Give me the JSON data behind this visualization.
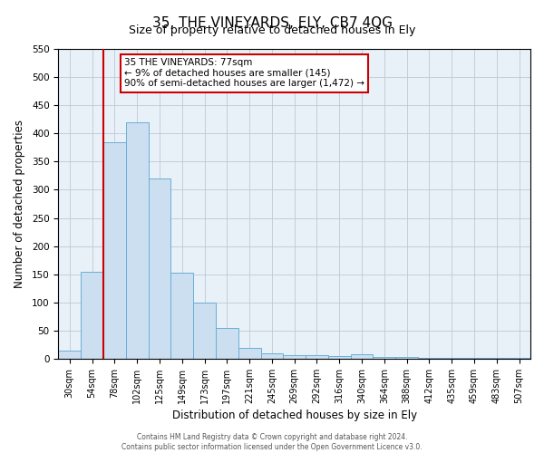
{
  "title": "35, THE VINEYARDS, ELY, CB7 4QG",
  "subtitle": "Size of property relative to detached houses in Ely",
  "xlabel": "Distribution of detached houses by size in Ely",
  "ylabel": "Number of detached properties",
  "bar_labels": [
    "30sqm",
    "54sqm",
    "78sqm",
    "102sqm",
    "125sqm",
    "149sqm",
    "173sqm",
    "197sqm",
    "221sqm",
    "245sqm",
    "269sqm",
    "292sqm",
    "316sqm",
    "340sqm",
    "364sqm",
    "388sqm",
    "412sqm",
    "435sqm",
    "459sqm",
    "483sqm",
    "507sqm"
  ],
  "bar_heights": [
    15,
    155,
    385,
    420,
    320,
    152,
    100,
    55,
    20,
    10,
    7,
    7,
    5,
    8,
    3,
    3,
    2,
    2,
    2,
    2,
    2
  ],
  "bar_color": "#ccdff0",
  "bar_edge_color": "#6aaed6",
  "vline_color": "#cc0000",
  "vline_pos": 2,
  "ylim": [
    0,
    550
  ],
  "yticks": [
    0,
    50,
    100,
    150,
    200,
    250,
    300,
    350,
    400,
    450,
    500,
    550
  ],
  "annotation_title": "35 THE VINEYARDS: 77sqm",
  "annotation_line1": "← 9% of detached houses are smaller (145)",
  "annotation_line2": "90% of semi-detached houses are larger (1,472) →",
  "annotation_box_color": "#ffffff",
  "annotation_box_edge": "#cc0000",
  "footer_line1": "Contains HM Land Registry data © Crown copyright and database right 2024.",
  "footer_line2": "Contains public sector information licensed under the Open Government Licence v3.0.",
  "bg_color": "#ffffff",
  "plot_bg_color": "#e8f0f8",
  "grid_color": "#c0c8d8",
  "title_fontsize": 11,
  "subtitle_fontsize": 9,
  "tick_fontsize": 7,
  "label_fontsize": 8.5
}
